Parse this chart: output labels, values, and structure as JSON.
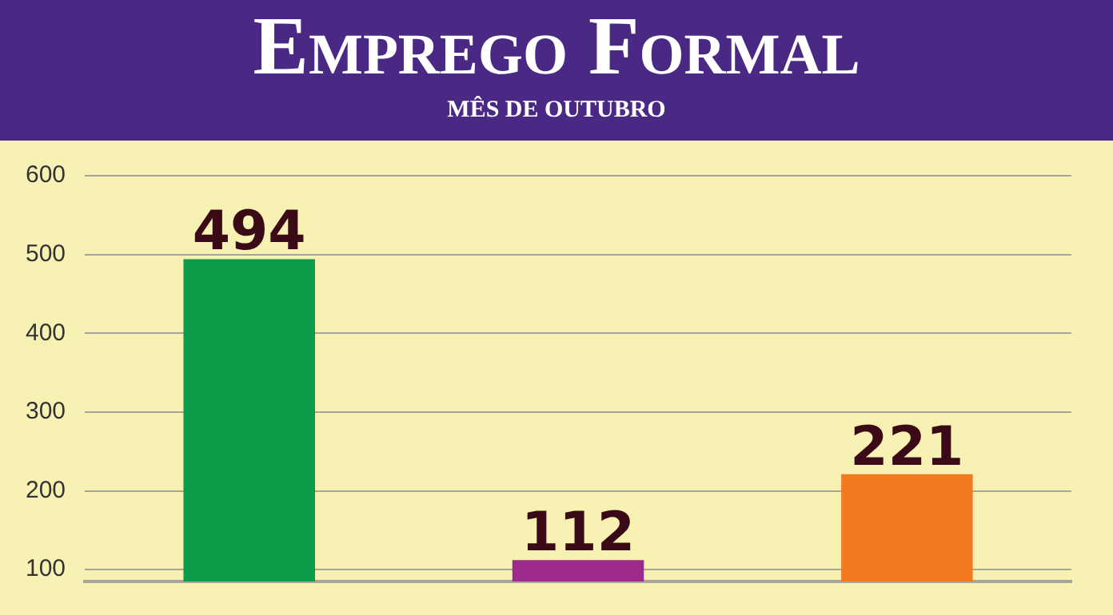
{
  "chart_data": {
    "type": "bar",
    "title": "Emprego Formal",
    "subtitle": "MÊS DE OUTUBRO",
    "categories": [
      null,
      null,
      null
    ],
    "values": [
      494,
      112,
      221
    ],
    "colors": [
      "#0b9a47",
      "#9c2a8c",
      "#f47a20"
    ],
    "ylim": [
      85,
      600
    ],
    "yticks": [
      100,
      200,
      300,
      400,
      500,
      600
    ],
    "grid": "y",
    "data_labels": true,
    "tick_labels": "y"
  }
}
